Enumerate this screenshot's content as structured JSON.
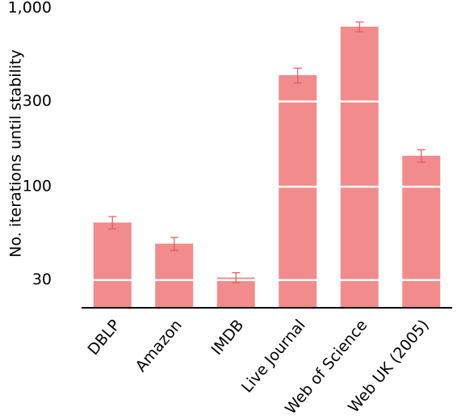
{
  "chart_data": {
    "type": "bar",
    "y_label": "No. iterations until stability",
    "categories": [
      "DBLP",
      "Amazon",
      "IMDB",
      "Live Journal",
      "Web of Science",
      "Web UK (2005)"
    ],
    "values": [
      63,
      48,
      31,
      421,
      787,
      149
    ],
    "errors": [
      5,
      4,
      2,
      40,
      50,
      12
    ],
    "color": "#f28b8b",
    "error_color": "#e8585a",
    "log_scale": true,
    "ylim": [
      21,
      1000
    ],
    "yticks": [
      30,
      100,
      300,
      {
        "value": 1000,
        "label": "1,000"
      }
    ],
    "grid": true,
    "grid_color": "#ffffff"
  }
}
